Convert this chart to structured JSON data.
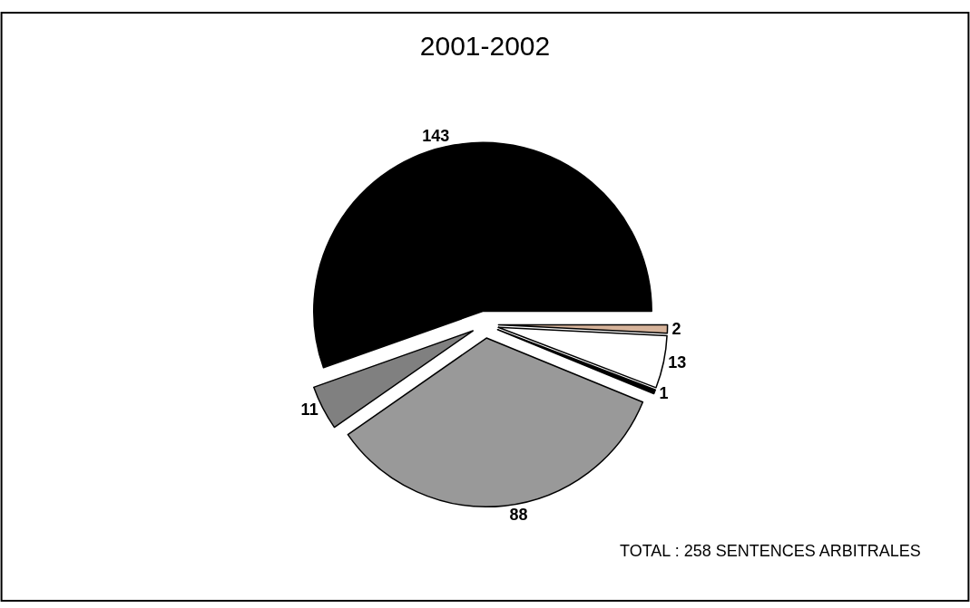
{
  "chart_data": {
    "type": "pie",
    "title": "2001-2002",
    "categories": [
      null,
      null,
      null,
      null,
      null,
      null
    ],
    "values": [
      2,
      13,
      1,
      88,
      11,
      143
    ],
    "colors": [
      "#d6b39a",
      "#ffffff",
      "#000000",
      "#999999",
      "#808080",
      "#000000"
    ],
    "data_labels": true,
    "legend": false,
    "annotations": [
      "TOTAL : 258 SENTENCES ARBITRALES"
    ]
  }
}
